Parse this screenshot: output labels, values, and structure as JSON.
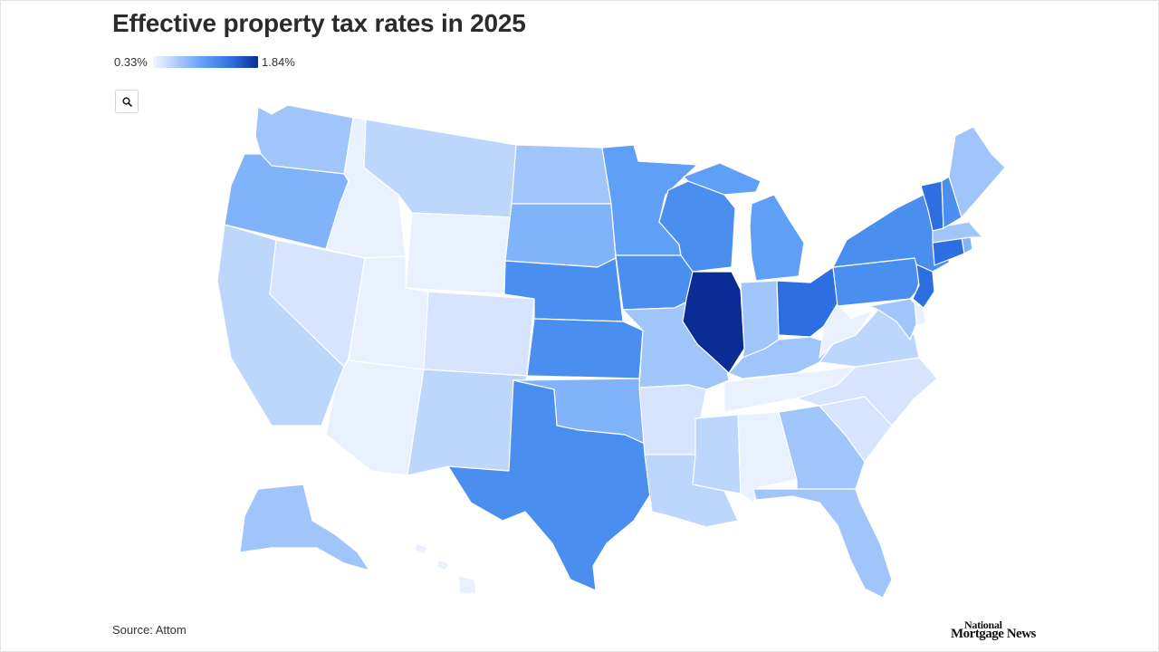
{
  "title": "Effective property tax rates in 2025",
  "legend": {
    "min_label": "0.33%",
    "max_label": "1.84%",
    "min_value": 0.33,
    "max_value": 1.84
  },
  "controls": {
    "zoom_icon": "search-icon"
  },
  "source": "Source: Attom",
  "brand": {
    "line1": "National",
    "line2": "Mortgage News"
  },
  "colors": {
    "scale": [
      "#eaf1fe",
      "#d6e5fd",
      "#bcd6fc",
      "#9fc5fb",
      "#80b3fa",
      "#5f9ff8",
      "#4a8ef0",
      "#2d6fe0",
      "#0b2b95"
    ],
    "border": "#ffffff"
  },
  "map_data": {
    "metric": "Effective property tax rate (%)",
    "states": [
      {
        "id": "WA",
        "name": "Washington",
        "level": 3
      },
      {
        "id": "OR",
        "name": "Oregon",
        "level": 4
      },
      {
        "id": "CA",
        "name": "California",
        "level": 2
      },
      {
        "id": "NV",
        "name": "Nevada",
        "level": 1
      },
      {
        "id": "ID",
        "name": "Idaho",
        "level": 0
      },
      {
        "id": "MT",
        "name": "Montana",
        "level": 2
      },
      {
        "id": "WY",
        "name": "Wyoming",
        "level": 0
      },
      {
        "id": "UT",
        "name": "Utah",
        "level": 0
      },
      {
        "id": "AZ",
        "name": "Arizona",
        "level": 0
      },
      {
        "id": "CO",
        "name": "Colorado",
        "level": 1
      },
      {
        "id": "NM",
        "name": "New Mexico",
        "level": 2
      },
      {
        "id": "ND",
        "name": "North Dakota",
        "level": 3
      },
      {
        "id": "SD",
        "name": "South Dakota",
        "level": 4
      },
      {
        "id": "NE",
        "name": "Nebraska",
        "level": 6
      },
      {
        "id": "KS",
        "name": "Kansas",
        "level": 6
      },
      {
        "id": "OK",
        "name": "Oklahoma",
        "level": 4
      },
      {
        "id": "TX",
        "name": "Texas",
        "level": 6
      },
      {
        "id": "MN",
        "name": "Minnesota",
        "level": 5
      },
      {
        "id": "IA",
        "name": "Iowa",
        "level": 6
      },
      {
        "id": "MO",
        "name": "Missouri",
        "level": 3
      },
      {
        "id": "AR",
        "name": "Arkansas",
        "level": 1
      },
      {
        "id": "LA",
        "name": "Louisiana",
        "level": 2
      },
      {
        "id": "WI",
        "name": "Wisconsin",
        "level": 6
      },
      {
        "id": "IL",
        "name": "Illinois",
        "level": 8
      },
      {
        "id": "MI",
        "name": "Michigan",
        "level": 5
      },
      {
        "id": "IN",
        "name": "Indiana",
        "level": 3
      },
      {
        "id": "OH",
        "name": "Ohio",
        "level": 7
      },
      {
        "id": "KY",
        "name": "Kentucky",
        "level": 3
      },
      {
        "id": "TN",
        "name": "Tennessee",
        "level": 0
      },
      {
        "id": "MS",
        "name": "Mississippi",
        "level": 2
      },
      {
        "id": "AL",
        "name": "Alabama",
        "level": 0
      },
      {
        "id": "GA",
        "name": "Georgia",
        "level": 3
      },
      {
        "id": "FL",
        "name": "Florida",
        "level": 3
      },
      {
        "id": "SC",
        "name": "South Carolina",
        "level": 1
      },
      {
        "id": "NC",
        "name": "North Carolina",
        "level": 1
      },
      {
        "id": "VA",
        "name": "Virginia",
        "level": 2
      },
      {
        "id": "WV",
        "name": "West Virginia",
        "level": 0
      },
      {
        "id": "PA",
        "name": "Pennsylvania",
        "level": 6
      },
      {
        "id": "NY",
        "name": "New York",
        "level": 6
      },
      {
        "id": "NJ",
        "name": "New Jersey",
        "level": 7
      },
      {
        "id": "DE",
        "name": "Delaware",
        "level": 0
      },
      {
        "id": "MD",
        "name": "Maryland",
        "level": 3
      },
      {
        "id": "CT",
        "name": "Connecticut",
        "level": 7
      },
      {
        "id": "RI",
        "name": "Rhode Island",
        "level": 4
      },
      {
        "id": "MA",
        "name": "Massachusetts",
        "level": 3
      },
      {
        "id": "VT",
        "name": "Vermont",
        "level": 7
      },
      {
        "id": "NH",
        "name": "New Hampshire",
        "level": 6
      },
      {
        "id": "ME",
        "name": "Maine",
        "level": 3
      },
      {
        "id": "AK",
        "name": "Alaska",
        "level": 3
      },
      {
        "id": "HI",
        "name": "Hawaii",
        "level": 0
      }
    ]
  }
}
